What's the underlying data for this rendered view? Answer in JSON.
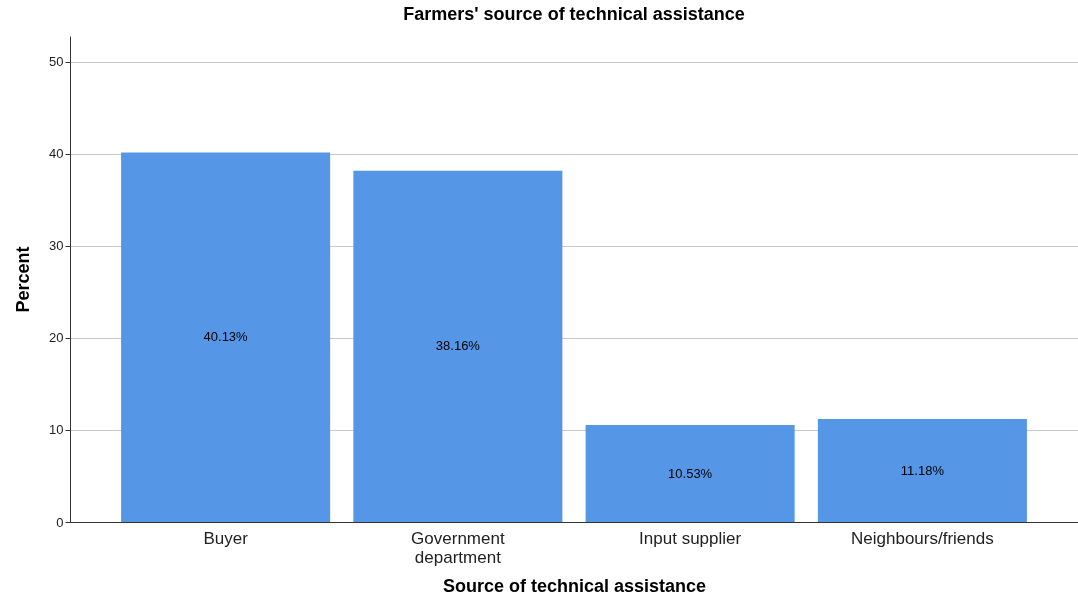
{
  "chart_data": {
    "type": "bar",
    "title": "Farmers' source of technical assistance",
    "xlabel": "Source of technical assistance",
    "ylabel": "Percent",
    "categories": [
      "Buyer",
      "Government department",
      "Input supplier",
      "Neighbours/friends"
    ],
    "values": [
      40.13,
      38.16,
      10.53,
      11.18
    ],
    "value_labels": [
      "40.13%",
      "38.16%",
      "10.53%",
      "11.18%"
    ],
    "color": "#5596e6",
    "ylim": [
      0,
      52.8
    ],
    "yticks": [
      0,
      10,
      20,
      30,
      40,
      50
    ],
    "grid": "y"
  }
}
